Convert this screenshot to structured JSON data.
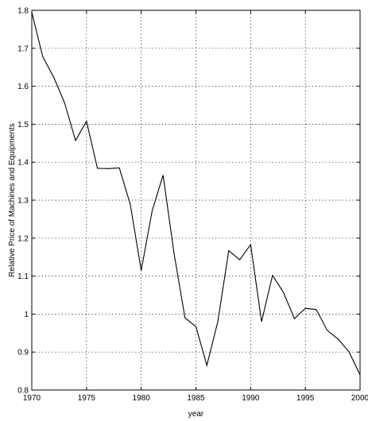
{
  "chart_data": {
    "type": "line",
    "title": "",
    "xlabel": "year",
    "ylabel": "Relative Price of Machines and Equipments",
    "xlim": [
      1970,
      2000
    ],
    "ylim": [
      0.8,
      1.8
    ],
    "xticks": [
      1970,
      1975,
      1980,
      1985,
      1990,
      1995,
      2000
    ],
    "yticks": [
      0.8,
      0.9,
      1.0,
      1.1,
      1.2,
      1.3,
      1.4,
      1.5,
      1.6,
      1.7,
      1.8
    ],
    "xtick_labels": [
      "1970",
      "1975",
      "1980",
      "1985",
      "1990",
      "1995",
      "2000"
    ],
    "ytick_labels": [
      "0.8",
      "0.9",
      "1",
      "1.1",
      "1.2",
      "1.3",
      "1.4",
      "1.5",
      "1.6",
      "1.7",
      "1.8"
    ],
    "grid": true,
    "series": [
      {
        "x": [
          1970,
          1971,
          1972,
          1973,
          1974,
          1975,
          1976,
          1977,
          1978,
          1979,
          1980,
          1981,
          1982,
          1983,
          1984,
          1985,
          1986,
          1987,
          1988,
          1989,
          1990,
          1991,
          1992,
          1993,
          1994,
          1995,
          1996,
          1997,
          1998,
          1999,
          2000
        ],
        "values": [
          1.795,
          1.678,
          1.624,
          1.556,
          1.457,
          1.508,
          1.384,
          1.383,
          1.385,
          1.289,
          1.115,
          1.272,
          1.366,
          1.16,
          0.99,
          0.967,
          0.865,
          0.98,
          1.167,
          1.143,
          1.183,
          0.98,
          1.102,
          1.057,
          0.988,
          1.015,
          1.012,
          0.957,
          0.934,
          0.9,
          0.84
        ],
        "color": "#000000"
      }
    ]
  }
}
